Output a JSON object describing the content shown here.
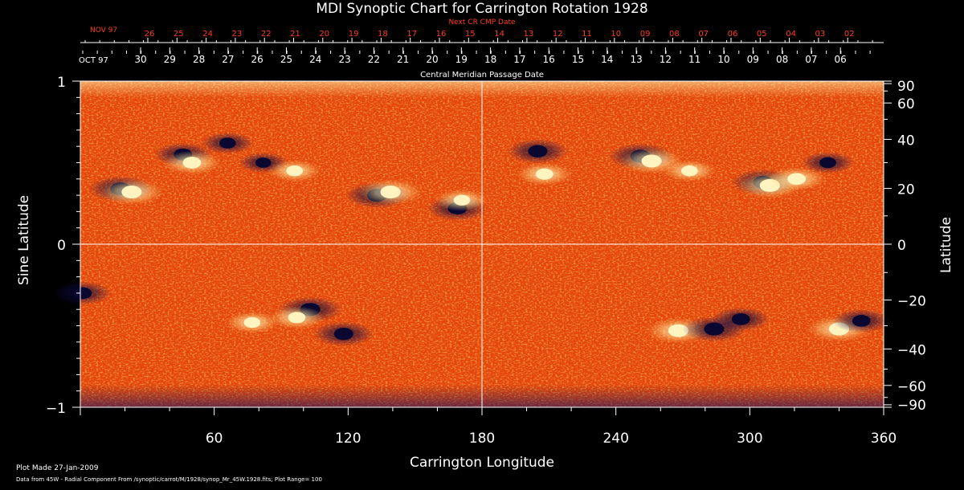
{
  "page": {
    "title": "MDI Synoptic Chart for Carrington Rotation 1928",
    "footer_line1": "Plot Made 27-Jan-2009",
    "footer_line2": "Data from 45W - Radial Component From /synoptic/carrot/M/1928/synop_Mr_45W.1928.fits; Plot Range= 100"
  },
  "colors": {
    "background": "#000000",
    "map_base": "#e6460c",
    "positive_field": "#fff4c0",
    "negative_field": "#0a0830",
    "axis": "#ffffff",
    "cmp_text": "#ff3b1a"
  },
  "chart_data": {
    "type": "heatmap",
    "title": "MDI Synoptic Chart for Carrington Rotation 1928",
    "xlabel": "Carrington Longitude",
    "ylabel_left": "Sine Latitude",
    "ylabel_right": "Latitude",
    "xlim": [
      0,
      360
    ],
    "ylim": [
      -1,
      1
    ],
    "x_ticks": [
      "60",
      "120",
      "180",
      "240",
      "300",
      "360"
    ],
    "x_tick_values": [
      60,
      120,
      180,
      240,
      300,
      360
    ],
    "left_y_ticks": [
      "1",
      "0",
      "−1"
    ],
    "left_y_tick_values": [
      1,
      0,
      -1
    ],
    "right_y_ticks": [
      "90",
      "60",
      "40",
      "20",
      "0",
      "−20",
      "−40",
      "−60",
      "−90"
    ],
    "right_y_tick_values": [
      90,
      60,
      40,
      20,
      0,
      -20,
      -40,
      -60,
      -90
    ],
    "plot_range": 100,
    "grid": "crosshair at longitude 180 and sine latitude 0",
    "top_axis_next_cr": {
      "label": "Next CR CMP Date",
      "start_label": "NOV 97",
      "days": [
        "26",
        "25",
        "24",
        "23",
        "22",
        "21",
        "20",
        "19",
        "18",
        "17",
        "16",
        "15",
        "14",
        "13",
        "12",
        "11",
        "10",
        "09",
        "08",
        "07",
        "06",
        "05",
        "04",
        "03",
        "02"
      ]
    },
    "top_axis_cmp": {
      "label": "Central Meridian Passage Date",
      "start_label": "OCT 97",
      "days": [
        "30",
        "29",
        "28",
        "27",
        "26",
        "25",
        "24",
        "23",
        "22",
        "21",
        "20",
        "19",
        "18",
        "17",
        "16",
        "15",
        "14",
        "13",
        "12",
        "11",
        "10",
        "09",
        "08",
        "07",
        "06"
      ]
    },
    "active_regions": [
      {
        "lon": 18,
        "sinlat": 0.34,
        "polarity": "negative",
        "strength": 1.0
      },
      {
        "lon": 23,
        "sinlat": 0.32,
        "polarity": "positive",
        "strength": 1.0
      },
      {
        "lon": 46,
        "sinlat": 0.55,
        "polarity": "negative",
        "strength": 0.8
      },
      {
        "lon": 50,
        "sinlat": 0.5,
        "polarity": "positive",
        "strength": 0.8
      },
      {
        "lon": 66,
        "sinlat": 0.62,
        "polarity": "negative",
        "strength": 0.6
      },
      {
        "lon": 82,
        "sinlat": 0.5,
        "polarity": "negative",
        "strength": 0.5
      },
      {
        "lon": 96,
        "sinlat": 0.45,
        "polarity": "positive",
        "strength": 0.6
      },
      {
        "lon": 133,
        "sinlat": 0.3,
        "polarity": "negative",
        "strength": 1.0
      },
      {
        "lon": 139,
        "sinlat": 0.32,
        "polarity": "positive",
        "strength": 1.0
      },
      {
        "lon": 169,
        "sinlat": 0.22,
        "polarity": "negative",
        "strength": 0.9
      },
      {
        "lon": 171,
        "sinlat": 0.27,
        "polarity": "positive",
        "strength": 0.6
      },
      {
        "lon": 205,
        "sinlat": 0.57,
        "polarity": "negative",
        "strength": 0.9
      },
      {
        "lon": 208,
        "sinlat": 0.43,
        "polarity": "positive",
        "strength": 0.7
      },
      {
        "lon": 251,
        "sinlat": 0.54,
        "polarity": "negative",
        "strength": 1.0
      },
      {
        "lon": 256,
        "sinlat": 0.51,
        "polarity": "positive",
        "strength": 1.0
      },
      {
        "lon": 273,
        "sinlat": 0.45,
        "polarity": "positive",
        "strength": 0.6
      },
      {
        "lon": 306,
        "sinlat": 0.38,
        "polarity": "negative",
        "strength": 1.0
      },
      {
        "lon": 309,
        "sinlat": 0.36,
        "polarity": "positive",
        "strength": 1.0
      },
      {
        "lon": 321,
        "sinlat": 0.4,
        "polarity": "positive",
        "strength": 0.8
      },
      {
        "lon": 335,
        "sinlat": 0.5,
        "polarity": "negative",
        "strength": 0.6
      },
      {
        "lon": 1,
        "sinlat": -0.3,
        "polarity": "negative",
        "strength": 0.8
      },
      {
        "lon": 77,
        "sinlat": -0.48,
        "polarity": "positive",
        "strength": 0.6
      },
      {
        "lon": 103,
        "sinlat": -0.4,
        "polarity": "negative",
        "strength": 1.0
      },
      {
        "lon": 97,
        "sinlat": -0.45,
        "polarity": "positive",
        "strength": 0.7
      },
      {
        "lon": 118,
        "sinlat": -0.55,
        "polarity": "negative",
        "strength": 0.9
      },
      {
        "lon": 268,
        "sinlat": -0.53,
        "polarity": "positive",
        "strength": 1.0
      },
      {
        "lon": 284,
        "sinlat": -0.52,
        "polarity": "negative",
        "strength": 1.0
      },
      {
        "lon": 296,
        "sinlat": -0.46,
        "polarity": "negative",
        "strength": 0.8
      },
      {
        "lon": 340,
        "sinlat": -0.52,
        "polarity": "positive",
        "strength": 1.0
      },
      {
        "lon": 350,
        "sinlat": -0.47,
        "polarity": "negative",
        "strength": 0.8
      }
    ]
  }
}
